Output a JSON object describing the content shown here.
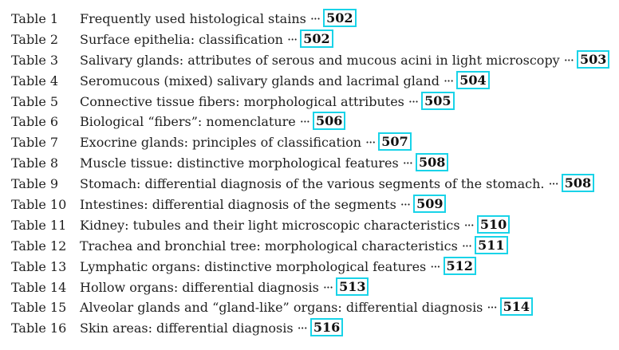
{
  "ellipsis": "···",
  "link_color": "#19d3e8",
  "tables": [
    {
      "label": "Table 1",
      "title": "Frequently used histological stains",
      "page": "502"
    },
    {
      "label": "Table 2",
      "title": "Surface epithelia: classification",
      "page": "502"
    },
    {
      "label": "Table 3",
      "title": "Salivary glands: attributes of serous and mucous acini in light microscopy",
      "page": "503"
    },
    {
      "label": "Table 4",
      "title": "Seromucous (mixed) salivary glands and lacrimal gland",
      "page": "504"
    },
    {
      "label": "Table 5",
      "title": "Connective tissue fibers: morphological attributes",
      "page": "505"
    },
    {
      "label": "Table 6",
      "title": "Biological “fibers”: nomenclature",
      "page": "506"
    },
    {
      "label": "Table 7",
      "title": "Exocrine glands: principles of classification",
      "page": "507"
    },
    {
      "label": "Table 8",
      "title": "Muscle tissue: distinctive morphological features",
      "page": "508"
    },
    {
      "label": "Table 9",
      "title": "Stomach: differential diagnosis of the various segments of the stomach.",
      "page": "508"
    },
    {
      "label": "Table 10",
      "title": "Intestines: differential diagnosis of the segments",
      "page": "509"
    },
    {
      "label": "Table 11",
      "title": "Kidney: tubules and their light microscopic characteristics",
      "page": "510"
    },
    {
      "label": "Table 12",
      "title": "Trachea and bronchial tree: morphological characteristics",
      "page": "511"
    },
    {
      "label": "Table 13",
      "title": "Lymphatic organs: distinctive morphological features",
      "page": "512"
    },
    {
      "label": "Table 14",
      "title": "Hollow organs: differential diagnosis",
      "page": "513"
    },
    {
      "label": "Table 15",
      "title": "Alveolar glands and “gland-like” organs: differential diagnosis",
      "page": "514"
    },
    {
      "label": "Table 16",
      "title": "Skin areas: differential diagnosis",
      "page": "516"
    }
  ]
}
